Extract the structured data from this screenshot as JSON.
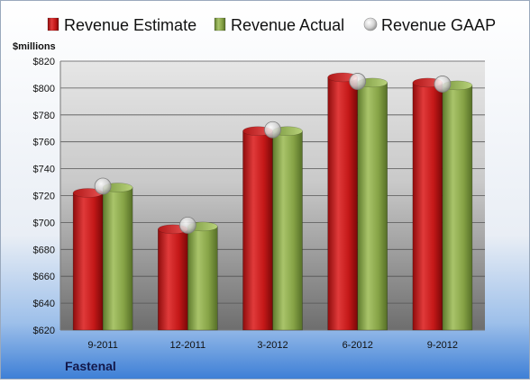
{
  "chart_data": {
    "type": "bar",
    "title": "",
    "ylabel": "$millions",
    "xlabel": "",
    "company": "Fastenal",
    "categories": [
      "9-2011",
      "12-2011",
      "3-2012",
      "6-2012",
      "9-2012"
    ],
    "ylim": [
      620,
      820
    ],
    "yticks": [
      620,
      640,
      660,
      680,
      700,
      720,
      740,
      760,
      780,
      800,
      820
    ],
    "ytick_labels": [
      "$620",
      "$640",
      "$660",
      "$680",
      "$700",
      "$720",
      "$740",
      "$760",
      "$780",
      "$800",
      "$820"
    ],
    "grid": true,
    "legend_position": "top",
    "series": [
      {
        "name": "Revenue Estimate",
        "kind": "bar",
        "color": "#cc1a1a",
        "values": [
          722,
          695,
          768,
          808,
          804
        ]
      },
      {
        "name": "Revenue Actual",
        "kind": "bar",
        "color": "#8aa84a",
        "values": [
          726,
          697,
          768,
          804,
          802
        ]
      },
      {
        "name": "Revenue GAAP",
        "kind": "marker",
        "color": "#c8c8c8",
        "values": [
          727,
          698,
          769,
          805,
          803
        ]
      }
    ]
  }
}
